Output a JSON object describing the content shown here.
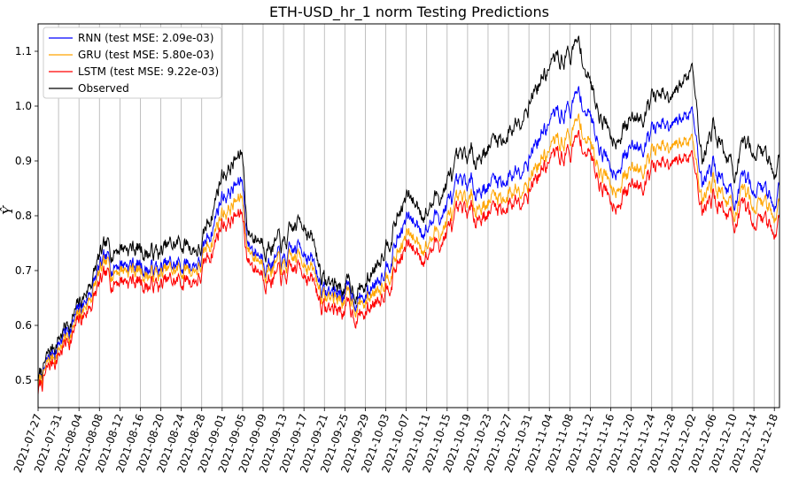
{
  "chart_data": {
    "type": "line",
    "title": "ETH-USD_hr_1 norm Testing Predictions",
    "xlabel": "",
    "ylabel": "Ŷ",
    "ylim": [
      0.45,
      1.15
    ],
    "yticks": [
      0.5,
      0.6,
      0.7,
      0.8,
      0.9,
      1.0,
      1.1
    ],
    "xlim": [
      "2021-07-27",
      "2021-12-19"
    ],
    "x_grid": true,
    "y_grid": false,
    "legend_position": "top-left",
    "xtick_labels": [
      "2021-07-27",
      "2021-07-31",
      "2021-08-04",
      "2021-08-08",
      "2021-08-12",
      "2021-08-16",
      "2021-08-20",
      "2021-08-24",
      "2021-08-28",
      "2021-09-01",
      "2021-09-05",
      "2021-09-09",
      "2021-09-13",
      "2021-09-17",
      "2021-09-21",
      "2021-09-25",
      "2021-09-29",
      "2021-10-03",
      "2021-10-07",
      "2021-10-11",
      "2021-10-15",
      "2021-10-19",
      "2021-10-23",
      "2021-10-27",
      "2021-10-31",
      "2021-11-04",
      "2021-11-08",
      "2021-11-12",
      "2021-11-16",
      "2021-11-20",
      "2021-11-24",
      "2021-11-28",
      "2021-12-02",
      "2021-12-06",
      "2021-12-10",
      "2021-12-14",
      "2021-12-18"
    ],
    "x": [
      "2021-07-27",
      "2021-07-31",
      "2021-08-04",
      "2021-08-08",
      "2021-08-12",
      "2021-08-16",
      "2021-08-20",
      "2021-08-24",
      "2021-08-28",
      "2021-09-01",
      "2021-09-05",
      "2021-09-06",
      "2021-09-09",
      "2021-09-13",
      "2021-09-17",
      "2021-09-21",
      "2021-09-25",
      "2021-09-29",
      "2021-10-03",
      "2021-10-07",
      "2021-10-11",
      "2021-10-15",
      "2021-10-19",
      "2021-10-23",
      "2021-10-27",
      "2021-10-31",
      "2021-11-04",
      "2021-11-08",
      "2021-11-10",
      "2021-11-12",
      "2021-11-16",
      "2021-11-20",
      "2021-11-24",
      "2021-11-28",
      "2021-12-02",
      "2021-12-04",
      "2021-12-06",
      "2021-12-10",
      "2021-12-14",
      "2021-12-18",
      "2021-12-19"
    ],
    "series": [
      {
        "name": "RNN (test MSE: 2.09e-03)",
        "color": "#0000ff",
        "values": [
          0.49,
          0.57,
          0.62,
          0.7,
          0.72,
          0.71,
          0.7,
          0.71,
          0.72,
          0.84,
          0.86,
          0.75,
          0.73,
          0.71,
          0.75,
          0.66,
          0.66,
          0.65,
          0.72,
          0.79,
          0.78,
          0.82,
          0.85,
          0.86,
          0.87,
          0.92,
          0.97,
          1.0,
          1.02,
          0.98,
          0.89,
          0.92,
          0.96,
          0.95,
          1.0,
          0.86,
          0.9,
          0.83,
          0.86,
          0.83,
          0.86
        ]
      },
      {
        "name": "GRU (test MSE: 5.80e-03)",
        "color": "#ffa500",
        "values": [
          0.49,
          0.56,
          0.61,
          0.69,
          0.71,
          0.7,
          0.69,
          0.7,
          0.71,
          0.81,
          0.83,
          0.74,
          0.72,
          0.7,
          0.73,
          0.65,
          0.65,
          0.64,
          0.7,
          0.76,
          0.75,
          0.79,
          0.82,
          0.83,
          0.84,
          0.88,
          0.92,
          0.95,
          0.97,
          0.93,
          0.86,
          0.88,
          0.92,
          0.91,
          0.95,
          0.83,
          0.87,
          0.81,
          0.83,
          0.81,
          0.83
        ]
      },
      {
        "name": "LSTM (test MSE: 9.22e-03)",
        "color": "#ff0000",
        "values": [
          0.48,
          0.55,
          0.6,
          0.67,
          0.69,
          0.68,
          0.67,
          0.68,
          0.69,
          0.79,
          0.8,
          0.72,
          0.7,
          0.68,
          0.71,
          0.63,
          0.63,
          0.62,
          0.68,
          0.74,
          0.73,
          0.77,
          0.8,
          0.81,
          0.82,
          0.86,
          0.9,
          0.92,
          0.94,
          0.91,
          0.83,
          0.85,
          0.89,
          0.88,
          0.92,
          0.81,
          0.84,
          0.79,
          0.8,
          0.78,
          0.8
        ]
      },
      {
        "name": "Observed",
        "color": "#000000",
        "values": [
          0.5,
          0.58,
          0.63,
          0.72,
          0.75,
          0.74,
          0.73,
          0.75,
          0.74,
          0.88,
          0.91,
          0.77,
          0.76,
          0.74,
          0.8,
          0.68,
          0.67,
          0.67,
          0.76,
          0.83,
          0.81,
          0.86,
          0.9,
          0.93,
          0.95,
          1.02,
          1.07,
          1.1,
          1.11,
          1.04,
          0.95,
          0.97,
          1.02,
          1.0,
          1.08,
          0.9,
          0.97,
          0.88,
          0.93,
          0.89,
          0.91
        ]
      }
    ]
  }
}
